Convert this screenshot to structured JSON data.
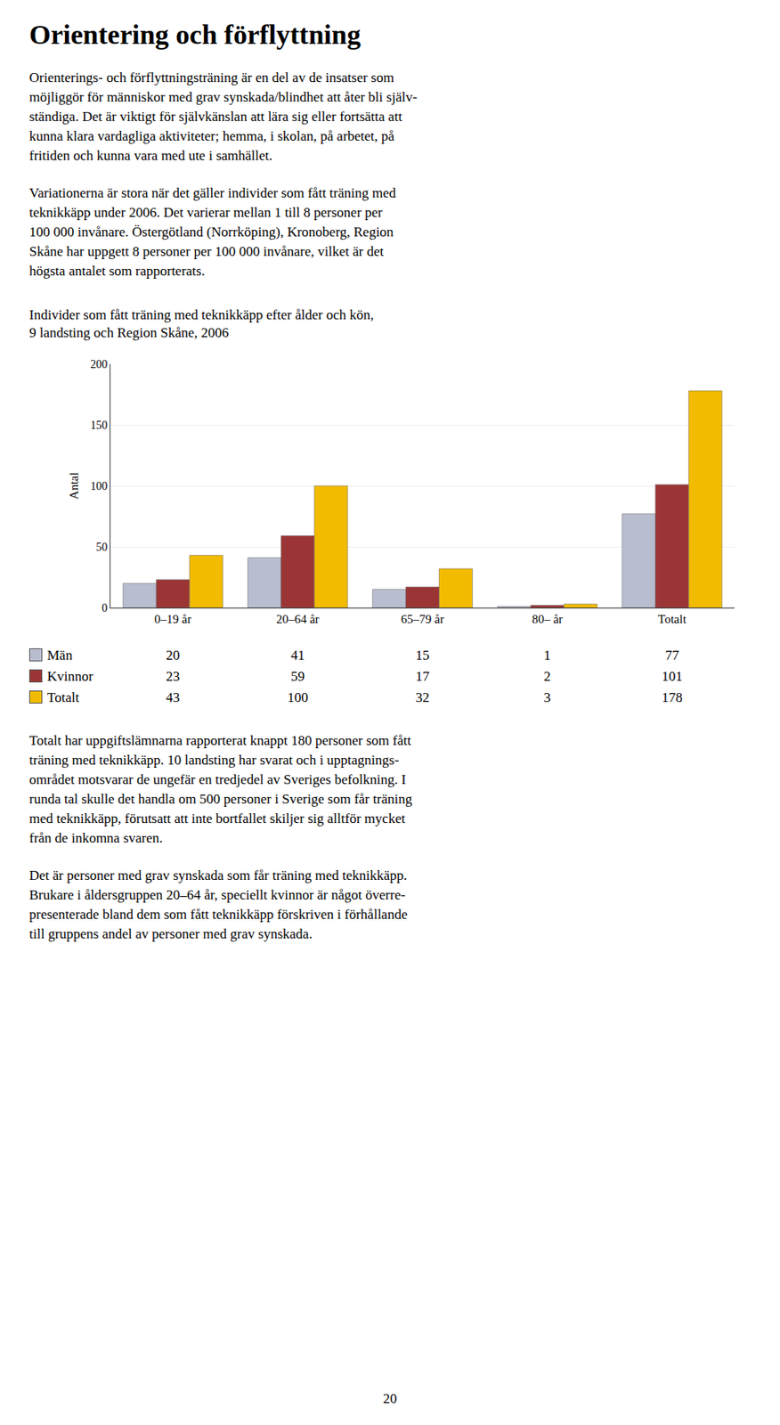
{
  "title": "Orientering och förflyttning",
  "paragraphs_before": [
    [
      "Orienterings- och förflyttningsträning är en del av de insatser som",
      "möjliggör för människor med grav synskada/blindhet att åter bli själv-",
      "ständiga. Det är viktigt för självkänslan att lära sig eller fortsätta att",
      "kunna klara vardagliga aktiviteter; hemma, i skolan, på arbetet, på",
      "fritiden och kunna vara med ute i samhället."
    ],
    [
      "Variationerna är stora när det gäller individer som fått träning med",
      "teknikkäpp under 2006. Det varierar mellan 1 till 8 personer per",
      "100 000 invånare. Östergötland (Norrköping), Kronoberg, Region",
      "Skåne har uppgett 8 personer per 100 000 invånare, vilket är det",
      "högsta antalet som rapporterats."
    ]
  ],
  "chart_data": {
    "type": "bar",
    "title": [
      "Individer som fått träning med teknikkäpp efter ålder och kön,",
      "9 landsting och Region Skåne, 2006"
    ],
    "ylabel": "Antal",
    "categories": [
      "0–19 år",
      "20–64 år",
      "65–79 år",
      "80– år",
      "Totalt"
    ],
    "series": [
      {
        "name": "Män",
        "color": "#b8bdd0",
        "values": [
          20,
          41,
          15,
          1,
          77
        ]
      },
      {
        "name": "Kvinnor",
        "color": "#9b3535",
        "values": [
          23,
          59,
          17,
          2,
          101
        ]
      },
      {
        "name": "Totalt",
        "color": "#f2bb00",
        "values": [
          43,
          100,
          32,
          3,
          178
        ]
      }
    ],
    "ylim": [
      0,
      200
    ],
    "yticks": [
      0,
      50,
      100,
      150,
      200
    ],
    "grid": true
  },
  "paragraphs_after": [
    [
      "Totalt har uppgiftslämnarna rapporterat knappt 180 personer som fått",
      "träning med teknikkäpp. 10 landsting har svarat och i upptagnings-",
      "området motsvarar de ungefär en tredjedel av Sveriges befolkning. I",
      "runda tal skulle det handla om 500 personer i Sverige som får träning",
      "med teknikkäpp, förutsatt att inte bortfallet skiljer sig alltför mycket",
      "från de inkomna svaren."
    ],
    [
      "Det är personer med grav synskada som får träning med teknikkäpp.",
      "Brukare i åldersgruppen 20–64 år, speciellt kvinnor är något överre-",
      "presenterade bland dem som fått teknikkäpp förskriven i förhållande",
      "till gruppens andel av personer med grav synskada."
    ]
  ],
  "page_number": "20"
}
